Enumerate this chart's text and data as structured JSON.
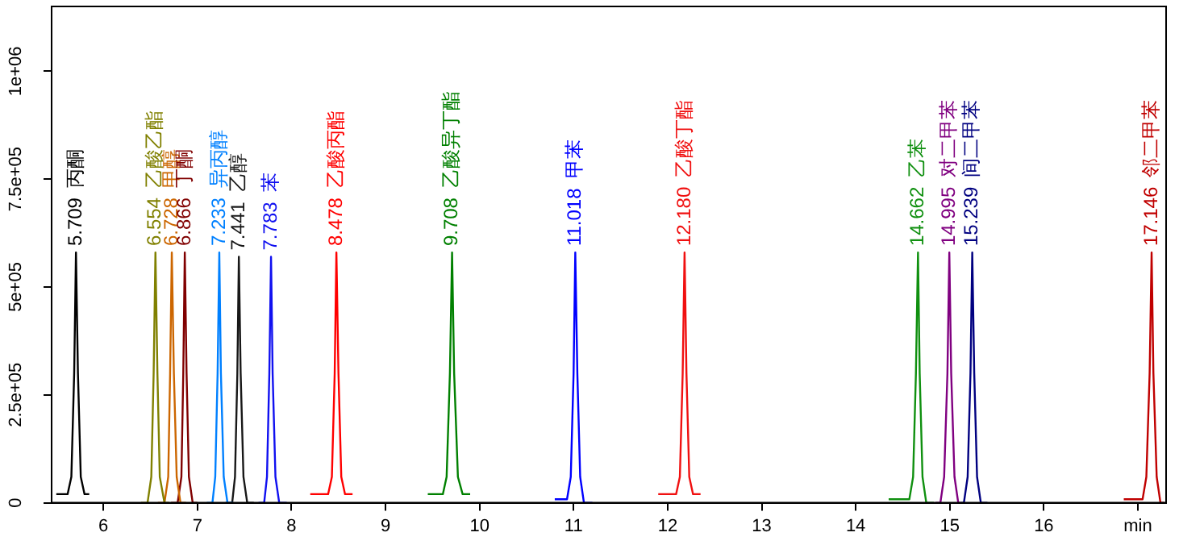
{
  "chart_data": {
    "type": "line",
    "xlim": [
      5.45,
      17.3
    ],
    "xticks": [
      6,
      7,
      8,
      9,
      10,
      11,
      12,
      13,
      14,
      15,
      16,
      {
        "value": 17,
        "label": "min"
      }
    ],
    "ylim": [
      0,
      1150000
    ],
    "yticks": [
      0,
      {
        "value": 250000,
        "label": "2.5e+05"
      },
      {
        "value": 500000,
        "label": "5e+05"
      },
      {
        "value": 750000,
        "label": "7.5e+05"
      },
      {
        "value": 1000000,
        "label": "1e+06"
      }
    ],
    "grid": false,
    "legend": false,
    "marker": "none",
    "line_style": "solid",
    "series": [
      {
        "name": "丙酮",
        "color": "#000000",
        "x": [
          5.5,
          5.62,
          5.66,
          5.69,
          5.709,
          5.73,
          5.76,
          5.8,
          5.85
        ],
        "values": [
          20000,
          20000,
          60000,
          300000,
          580000,
          300000,
          60000,
          20000,
          20000
        ]
      },
      {
        "name": "乙酸乙酯",
        "color": "#808000",
        "x": [
          6.4,
          6.47,
          6.51,
          6.535,
          6.554,
          6.575,
          6.6,
          6.65,
          6.7
        ],
        "values": [
          0,
          0,
          60000,
          300000,
          580000,
          300000,
          60000,
          0,
          0
        ]
      },
      {
        "name": "甲醇",
        "color": "#cc6600",
        "x": [
          6.58,
          6.65,
          6.69,
          6.71,
          6.728,
          6.75,
          6.78,
          6.82,
          6.88
        ],
        "values": [
          0,
          0,
          60000,
          300000,
          580000,
          300000,
          60000,
          0,
          0
        ]
      },
      {
        "name": "丁酮",
        "color": "#800000",
        "x": [
          6.72,
          6.79,
          6.83,
          6.85,
          6.866,
          6.885,
          6.91,
          6.95,
          7.0
        ],
        "values": [
          0,
          0,
          60000,
          300000,
          580000,
          300000,
          60000,
          0,
          0
        ]
      },
      {
        "name": "异丙醇",
        "color": "#0080ff",
        "x": [
          7.1,
          7.16,
          7.19,
          7.215,
          7.233,
          7.25,
          7.28,
          7.32,
          7.38
        ],
        "values": [
          0,
          0,
          60000,
          300000,
          580000,
          300000,
          60000,
          0,
          0
        ]
      },
      {
        "name": "乙醇",
        "color": "#181818",
        "x": [
          7.3,
          7.37,
          7.4,
          7.425,
          7.441,
          7.46,
          7.49,
          7.53,
          7.6
        ],
        "values": [
          0,
          0,
          60000,
          300000,
          570000,
          300000,
          60000,
          0,
          0
        ]
      },
      {
        "name": "苯",
        "color": "#1010f0",
        "x": [
          7.65,
          7.71,
          7.74,
          7.765,
          7.783,
          7.8,
          7.83,
          7.87,
          7.95
        ],
        "values": [
          0,
          0,
          60000,
          300000,
          570000,
          300000,
          60000,
          0,
          0
        ]
      },
      {
        "name": "乙酸丙酯",
        "color": "#ff0000",
        "x": [
          8.2,
          8.39,
          8.43,
          8.46,
          8.478,
          8.5,
          8.53,
          8.57,
          8.65
        ],
        "values": [
          20000,
          20000,
          60000,
          300000,
          580000,
          300000,
          60000,
          20000,
          20000
        ]
      },
      {
        "name": "乙酸异丁酯",
        "color": "#008000",
        "x": [
          9.45,
          9.61,
          9.65,
          9.685,
          9.708,
          9.73,
          9.77,
          9.82,
          9.9
        ],
        "values": [
          20000,
          20000,
          60000,
          300000,
          580000,
          300000,
          60000,
          20000,
          20000
        ]
      },
      {
        "name": "甲苯",
        "color": "#0000ff",
        "x": [
          10.8,
          10.93,
          10.97,
          11.0,
          11.018,
          11.04,
          11.07,
          11.11,
          11.2
        ],
        "values": [
          8000,
          8000,
          60000,
          300000,
          580000,
          300000,
          60000,
          0,
          0
        ]
      },
      {
        "name": "乙酸丁酯",
        "color": "#f01010",
        "x": [
          11.9,
          12.09,
          12.13,
          12.16,
          12.18,
          12.2,
          12.23,
          12.27,
          12.35
        ],
        "values": [
          20000,
          20000,
          60000,
          300000,
          580000,
          300000,
          60000,
          20000,
          20000
        ]
      },
      {
        "name": "乙苯",
        "color": "#109010",
        "x": [
          14.35,
          14.57,
          14.61,
          14.64,
          14.662,
          14.68,
          14.71,
          14.75,
          14.83
        ],
        "values": [
          8000,
          8000,
          60000,
          300000,
          580000,
          300000,
          60000,
          0,
          0
        ]
      },
      {
        "name": "对二甲苯",
        "color": "#800080",
        "x": [
          14.85,
          14.9,
          14.94,
          14.975,
          14.995,
          15.015,
          15.05,
          15.09,
          15.12
        ],
        "values": [
          0,
          0,
          60000,
          300000,
          580000,
          300000,
          60000,
          0,
          0
        ]
      },
      {
        "name": "间二甲苯",
        "color": "#000080",
        "x": [
          15.12,
          15.15,
          15.19,
          15.22,
          15.239,
          15.26,
          15.29,
          15.33,
          15.4
        ],
        "values": [
          0,
          0,
          60000,
          300000,
          580000,
          300000,
          60000,
          0,
          0
        ]
      },
      {
        "name": "邻二甲苯",
        "color": "#c00000",
        "x": [
          16.85,
          17.05,
          17.09,
          17.125,
          17.146,
          17.165,
          17.2,
          17.24,
          17.28
        ],
        "values": [
          8000,
          8000,
          60000,
          300000,
          580000,
          300000,
          60000,
          0,
          0
        ]
      }
    ],
    "annotations": [
      {
        "text": "5.709",
        "x": 5.709,
        "y": 580000
      },
      {
        "text": "6.554",
        "x": 6.554,
        "y": 580000
      },
      {
        "text": "6.728",
        "x": 6.728,
        "y": 580000
      },
      {
        "text": "6.866",
        "x": 6.866,
        "y": 580000
      },
      {
        "text": "7.233",
        "x": 7.233,
        "y": 580000
      },
      {
        "text": "7.441",
        "x": 7.441,
        "y": 570000
      },
      {
        "text": "7.783",
        "x": 7.783,
        "y": 570000
      },
      {
        "text": "8.478",
        "x": 8.478,
        "y": 580000
      },
      {
        "text": "9.708",
        "x": 9.708,
        "y": 580000
      },
      {
        "text": "11.018",
        "x": 11.018,
        "y": 580000
      },
      {
        "text": "12.180",
        "x": 12.18,
        "y": 580000
      },
      {
        "text": "14.662",
        "x": 14.662,
        "y": 580000
      },
      {
        "text": "14.995",
        "x": 14.995,
        "y": 580000
      },
      {
        "text": "15.239",
        "x": 15.239,
        "y": 580000
      },
      {
        "text": "17.146",
        "x": 17.146,
        "y": 580000
      }
    ]
  }
}
